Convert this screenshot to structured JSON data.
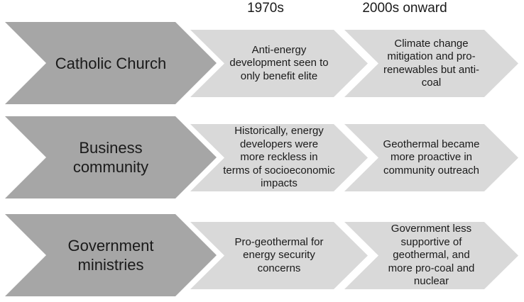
{
  "columns": [
    {
      "label": "1970s"
    },
    {
      "label": "2000s onward"
    }
  ],
  "rows": [
    {
      "actor": "Catholic Church",
      "era_1970s": "Anti-energy\ndevelopment seen to\nonly benefit elite",
      "era_2000s": "Climate change\nmitigation and pro-\nrenewables but anti-\ncoal"
    },
    {
      "actor": "Business\ncommunity",
      "era_1970s": "Historically, energy\ndevelopers were\nmore reckless in\nterms of socioeconomic\nimpacts",
      "era_2000s": "Geothermal became\nmore proactive in\ncommunity outreach"
    },
    {
      "actor": "Government\nministries",
      "era_1970s": "Pro-geothermal for\nenergy security\nconcerns",
      "era_2000s": "Government less\nsupportive of\ngeothermal, and\nmore pro-coal and\nnuclear"
    }
  ],
  "colors": {
    "arrow-dark": "#a6a6a6",
    "arrow-light": "#d9d9d9",
    "text": "#1a1a1a",
    "background": "#ffffff"
  }
}
